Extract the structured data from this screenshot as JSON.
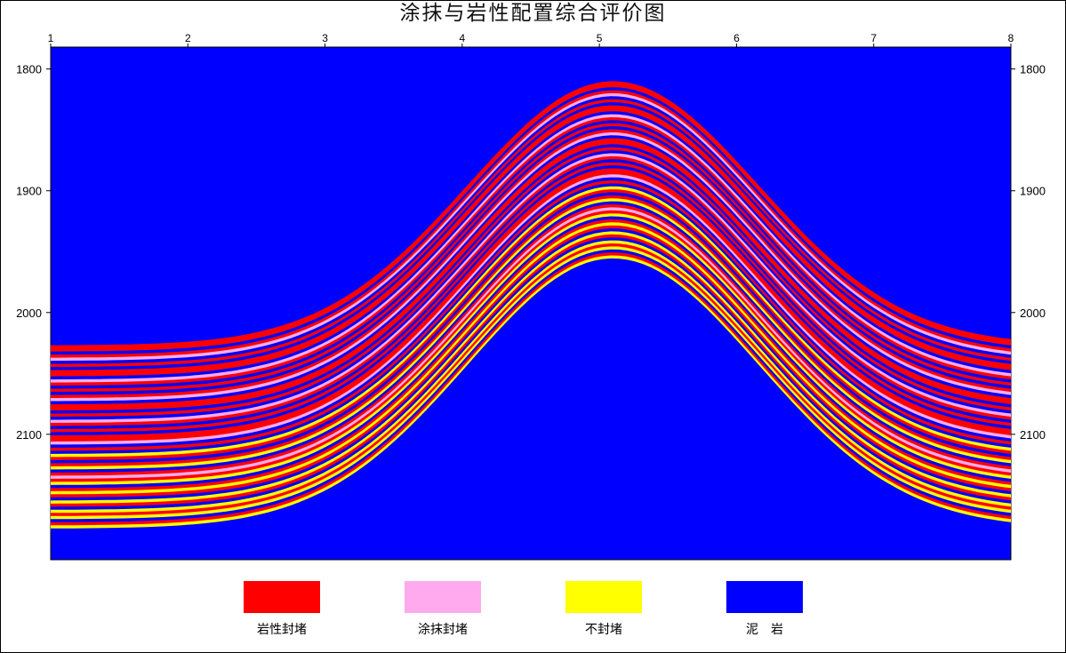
{
  "chart_data": {
    "type": "area",
    "title": "涂抹与岩性配置综合评价图",
    "x_ticks": [
      "1",
      "2",
      "3",
      "4",
      "5",
      "6",
      "7",
      "8"
    ],
    "xlim": [
      1,
      8
    ],
    "y_ticks": [
      "1800",
      "1900",
      "2000",
      "2100"
    ],
    "ylim": [
      2203,
      1782
    ],
    "background": "#0000FF",
    "legend": [
      {
        "key": "R",
        "label": "岩性封堵",
        "color": "#FF0000"
      },
      {
        "key": "P",
        "label": "涂抹封堵",
        "color": "#FFAAEE"
      },
      {
        "key": "Y",
        "label": "不封堵",
        "color": "#FFFF00"
      },
      {
        "key": "B",
        "label": "泥　岩",
        "color": "#0000FF"
      }
    ],
    "structure": {
      "crest_x": 5.1,
      "top_crest_depth": 1810,
      "top_flank_depth": 2027,
      "base_crest_depth": 1958,
      "base_flank_depth": 2180
    },
    "layers": [
      "R",
      "R",
      "B",
      "R",
      "P",
      "B",
      "R",
      "B",
      "R",
      "R",
      "B",
      "P",
      "R",
      "B",
      "R",
      "B",
      "R",
      "P",
      "B",
      "R",
      "R",
      "B",
      "R",
      "B",
      "P",
      "R",
      "B",
      "R",
      "B",
      "R",
      "R",
      "P",
      "B",
      "R",
      "B",
      "Y",
      "R",
      "B",
      "R",
      "Y",
      "B",
      "R",
      "P",
      "R",
      "Y",
      "B",
      "R",
      "Y",
      "R",
      "B",
      "Y",
      "R",
      "B",
      "Y",
      "R",
      "Y",
      "B",
      "R",
      "Y",
      "B"
    ]
  }
}
